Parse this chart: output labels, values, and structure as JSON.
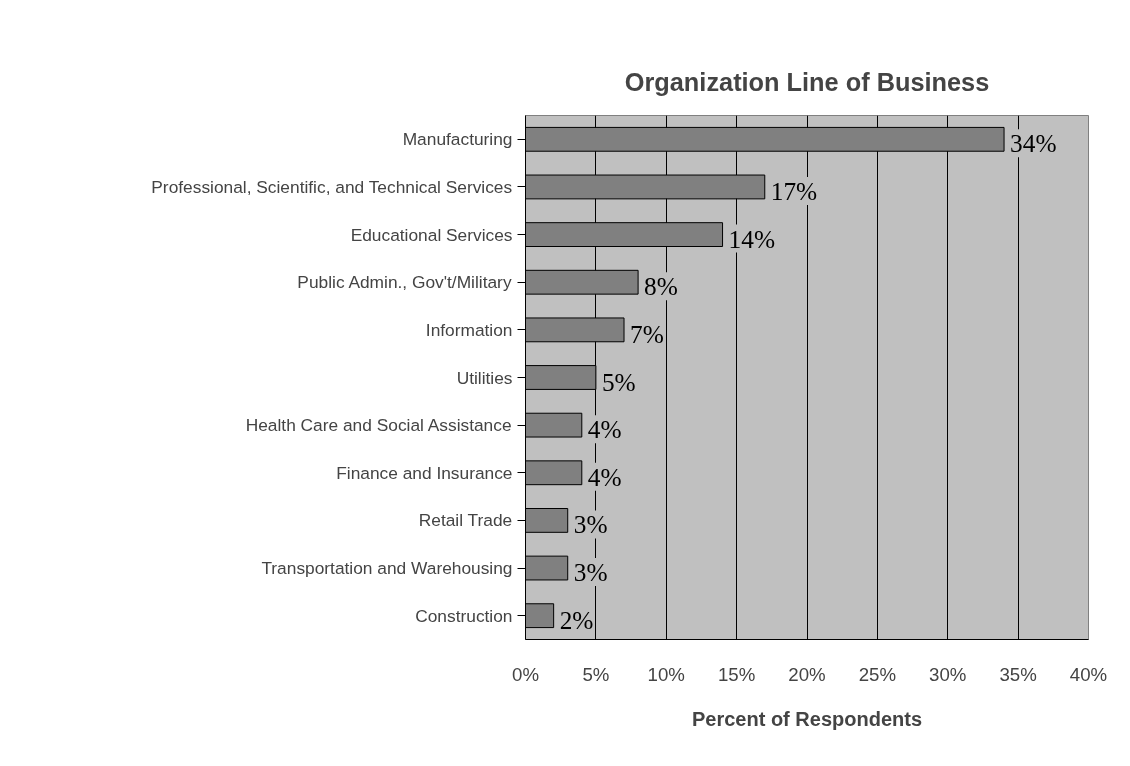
{
  "chart_data": {
    "type": "bar",
    "orientation": "horizontal",
    "title": "Organization Line of Business",
    "xlabel": "Percent of Respondents",
    "categories": [
      "Manufacturing",
      "Professional, Scientific, and Technical Services",
      "Educational Services",
      "Public Admin., Gov't/Military",
      "Information",
      "Utilities",
      "Health Care and Social Assistance",
      "Finance and Insurance",
      "Retail Trade",
      "Transportation and Warehousing",
      "Construction"
    ],
    "values": [
      34,
      17,
      14,
      8,
      7,
      5,
      4,
      4,
      3,
      3,
      2
    ],
    "value_labels": [
      "34%",
      "17%",
      "14%",
      "8%",
      "7%",
      "5%",
      "4%",
      "4%",
      "3%",
      "3%",
      "2%"
    ],
    "color": "#808080",
    "xlim": [
      0,
      40
    ],
    "xticks": [
      {
        "value": 0,
        "label": "0%"
      },
      {
        "value": 5,
        "label": "5%"
      },
      {
        "value": 10,
        "label": "10%"
      },
      {
        "value": 15,
        "label": "15%"
      },
      {
        "value": 20,
        "label": "20%"
      },
      {
        "value": 25,
        "label": "25%"
      },
      {
        "value": 30,
        "label": "30%"
      },
      {
        "value": 35,
        "label": "35%"
      },
      {
        "value": 40,
        "label": "40%"
      }
    ],
    "grid": "x"
  }
}
